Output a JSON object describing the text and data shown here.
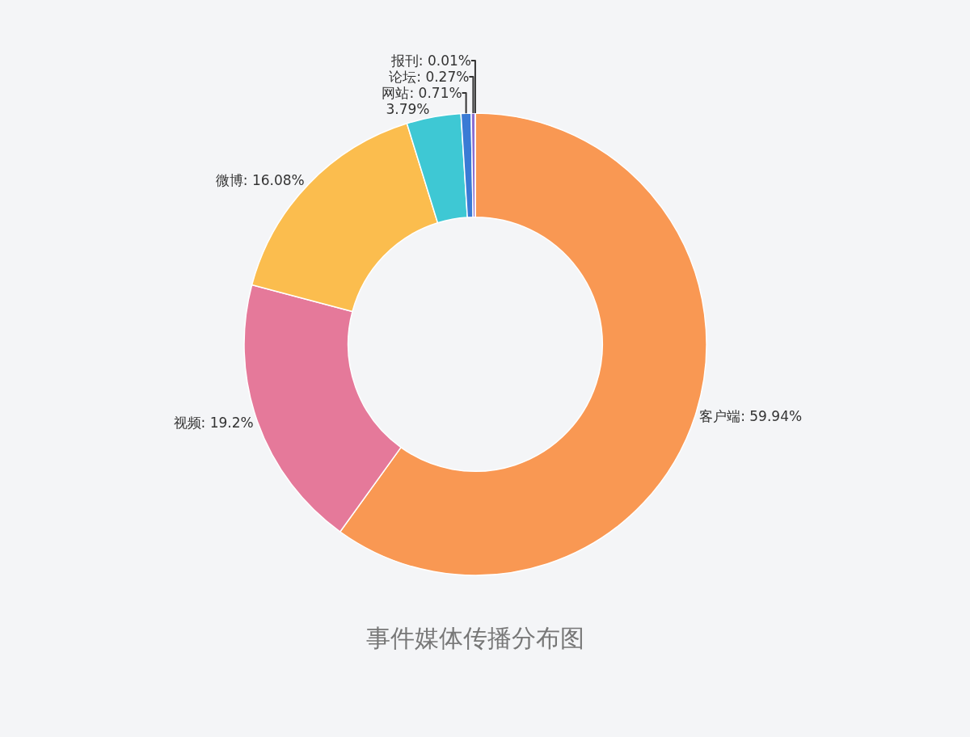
{
  "chart_data": {
    "type": "donut",
    "title": "事件媒体传播分布图",
    "categories": [
      "客户端",
      "视频",
      "微博",
      null,
      "网站",
      "论坛",
      "报刊"
    ],
    "values": [
      59.94,
      19.2,
      16.08,
      3.79,
      0.71,
      0.27,
      0.01
    ],
    "value_labels": [
      "59.94%",
      "19.2%",
      "16.08%",
      "3.79%",
      "0.71%",
      "0.27%",
      "0.01%"
    ],
    "colors": [
      "#f99853",
      "#e5799a",
      "#fbbd4e",
      "#3ec8d4",
      "#3a7bd5",
      "#8a6fd1",
      "#c0504d"
    ],
    "legend": false
  }
}
